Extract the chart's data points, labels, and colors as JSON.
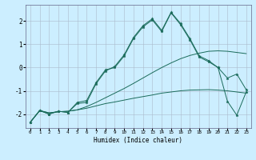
{
  "xlabel": "Humidex (Indice chaleur)",
  "bg_color": "#cceeff",
  "grid_color": "#aabbcc",
  "line_color": "#1a6b5a",
  "xlim": [
    -0.5,
    23.5
  ],
  "ylim": [
    -2.6,
    2.7
  ],
  "yticks": [
    -2,
    -1,
    0,
    1,
    2
  ],
  "xticks": [
    0,
    1,
    2,
    3,
    4,
    5,
    6,
    7,
    8,
    9,
    10,
    11,
    12,
    13,
    14,
    15,
    16,
    17,
    18,
    19,
    20,
    21,
    22,
    23
  ],
  "series": {
    "line1_flat": [
      [
        0,
        -2.35
      ],
      [
        1,
        -1.85
      ],
      [
        2,
        -1.95
      ],
      [
        3,
        -1.9
      ],
      [
        4,
        -1.88
      ],
      [
        5,
        -1.82
      ],
      [
        6,
        -1.75
      ],
      [
        7,
        -1.65
      ],
      [
        8,
        -1.55
      ],
      [
        9,
        -1.48
      ],
      [
        10,
        -1.4
      ],
      [
        11,
        -1.32
      ],
      [
        12,
        -1.25
      ],
      [
        13,
        -1.18
      ],
      [
        14,
        -1.1
      ],
      [
        15,
        -1.05
      ],
      [
        16,
        -1.0
      ],
      [
        17,
        -0.97
      ],
      [
        18,
        -0.96
      ],
      [
        19,
        -0.95
      ],
      [
        20,
        -0.97
      ],
      [
        21,
        -1.0
      ],
      [
        22,
        -1.05
      ],
      [
        23,
        -1.1
      ]
    ],
    "line2_rising": [
      [
        0,
        -2.35
      ],
      [
        1,
        -1.85
      ],
      [
        2,
        -1.95
      ],
      [
        3,
        -1.9
      ],
      [
        4,
        -1.88
      ],
      [
        5,
        -1.82
      ],
      [
        6,
        -1.68
      ],
      [
        7,
        -1.5
      ],
      [
        8,
        -1.3
      ],
      [
        9,
        -1.1
      ],
      [
        10,
        -0.9
      ],
      [
        11,
        -0.68
      ],
      [
        12,
        -0.45
      ],
      [
        13,
        -0.22
      ],
      [
        14,
        0.0
      ],
      [
        15,
        0.2
      ],
      [
        16,
        0.38
      ],
      [
        17,
        0.52
      ],
      [
        18,
        0.62
      ],
      [
        19,
        0.7
      ],
      [
        20,
        0.72
      ],
      [
        21,
        0.7
      ],
      [
        22,
        0.65
      ],
      [
        23,
        0.6
      ]
    ],
    "line3_wave": [
      [
        0,
        -2.35
      ],
      [
        1,
        -1.85
      ],
      [
        2,
        -2.0
      ],
      [
        3,
        -1.88
      ],
      [
        4,
        -1.93
      ],
      [
        5,
        -1.5
      ],
      [
        6,
        -1.42
      ],
      [
        7,
        -0.65
      ],
      [
        8,
        -0.1
      ],
      [
        9,
        0.0
      ],
      [
        10,
        0.5
      ],
      [
        11,
        1.25
      ],
      [
        12,
        1.75
      ],
      [
        13,
        2.05
      ],
      [
        14,
        1.55
      ],
      [
        15,
        2.35
      ],
      [
        16,
        1.85
      ],
      [
        17,
        1.2
      ],
      [
        18,
        0.45
      ],
      [
        19,
        0.25
      ],
      [
        20,
        0.0
      ],
      [
        21,
        -0.45
      ],
      [
        22,
        -0.28
      ],
      [
        23,
        -0.95
      ]
    ],
    "line4_wave": [
      [
        0,
        -2.35
      ],
      [
        1,
        -1.85
      ],
      [
        2,
        -2.0
      ],
      [
        3,
        -1.88
      ],
      [
        4,
        -1.93
      ],
      [
        5,
        -1.55
      ],
      [
        6,
        -1.5
      ],
      [
        7,
        -0.7
      ],
      [
        8,
        -0.15
      ],
      [
        9,
        0.05
      ],
      [
        10,
        0.55
      ],
      [
        11,
        1.3
      ],
      [
        12,
        1.8
      ],
      [
        13,
        2.1
      ],
      [
        14,
        1.6
      ],
      [
        15,
        2.38
      ],
      [
        16,
        1.9
      ],
      [
        17,
        1.25
      ],
      [
        18,
        0.5
      ],
      [
        19,
        0.3
      ],
      [
        20,
        0.0
      ],
      [
        21,
        -1.45
      ],
      [
        22,
        -2.05
      ],
      [
        23,
        -1.05
      ]
    ]
  }
}
